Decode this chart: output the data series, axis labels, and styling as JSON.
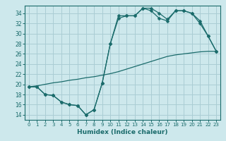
{
  "xlabel": "Humidex (Indice chaleur)",
  "background_color": "#cde8ec",
  "grid_color": "#aacdd4",
  "line_color": "#1a6b6b",
  "xlim": [
    -0.5,
    23.5
  ],
  "ylim": [
    13.0,
    35.5
  ],
  "yticks": [
    14,
    16,
    18,
    20,
    22,
    24,
    26,
    28,
    30,
    32,
    34
  ],
  "xticks": [
    0,
    1,
    2,
    3,
    4,
    5,
    6,
    7,
    8,
    9,
    10,
    11,
    12,
    13,
    14,
    15,
    16,
    17,
    18,
    19,
    20,
    21,
    22,
    23
  ],
  "line1_x": [
    0,
    1,
    2,
    3,
    4,
    5,
    6,
    7,
    8,
    9,
    10,
    11,
    12,
    13,
    14,
    15,
    16,
    17,
    18,
    19,
    20,
    21,
    22,
    23
  ],
  "line1_y": [
    19.5,
    19.5,
    18.0,
    17.8,
    16.5,
    16.0,
    15.8,
    14.0,
    15.0,
    20.2,
    28.0,
    33.5,
    33.5,
    33.5,
    35.0,
    35.0,
    34.0,
    32.8,
    34.5,
    34.5,
    34.0,
    32.0,
    29.5,
    26.5
  ],
  "line2_x": [
    0,
    1,
    2,
    3,
    4,
    5,
    6,
    7,
    8,
    9,
    10,
    11,
    12,
    13,
    14,
    15,
    16,
    17,
    18,
    19,
    20,
    21,
    22,
    23
  ],
  "line2_y": [
    19.5,
    19.5,
    18.0,
    17.8,
    16.5,
    16.0,
    15.8,
    14.0,
    15.0,
    20.2,
    28.0,
    33.0,
    33.5,
    33.5,
    35.0,
    34.5,
    33.0,
    32.5,
    34.5,
    34.5,
    34.0,
    32.5,
    29.5,
    26.5
  ],
  "line3_x": [
    0,
    1,
    2,
    3,
    4,
    5,
    6,
    7,
    8,
    9,
    10,
    11,
    12,
    13,
    14,
    15,
    16,
    17,
    18,
    19,
    20,
    21,
    22,
    23
  ],
  "line3_y": [
    19.5,
    19.7,
    20.0,
    20.3,
    20.5,
    20.8,
    21.0,
    21.3,
    21.5,
    21.8,
    22.1,
    22.5,
    23.0,
    23.5,
    24.0,
    24.5,
    25.0,
    25.5,
    25.8,
    26.0,
    26.2,
    26.4,
    26.5,
    26.5
  ]
}
